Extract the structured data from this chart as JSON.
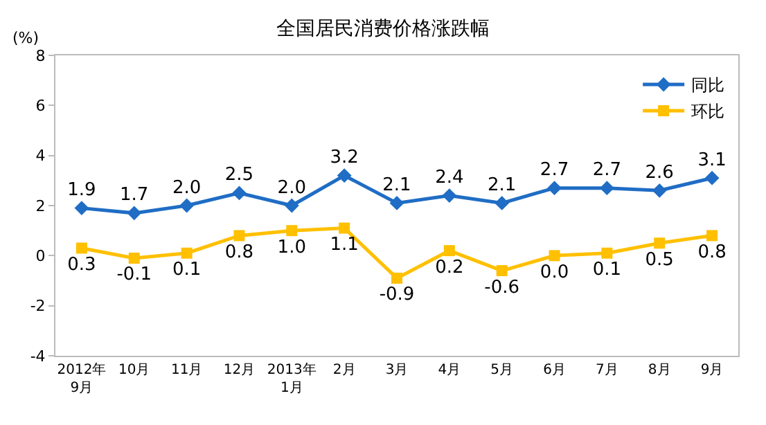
{
  "chart_data": {
    "type": "line",
    "title": "全国居民消费价格涨跌幅",
    "ylabel": "(%)",
    "categories": [
      "2012年\n9月",
      "10月",
      "11月",
      "12月",
      "2013年\n1月",
      "2月",
      "3月",
      "4月",
      "5月",
      "6月",
      "7月",
      "8月",
      "9月"
    ],
    "series": [
      {
        "name": "同比",
        "color": "#1f6dc5",
        "marker": "diamond",
        "values": [
          1.9,
          1.7,
          2.0,
          2.5,
          2.0,
          3.2,
          2.1,
          2.4,
          2.1,
          2.7,
          2.7,
          2.6,
          3.1
        ],
        "value_labels": [
          "1.9",
          "1.7",
          "2.0",
          "2.5",
          "2.0",
          "3.2",
          "2.1",
          "2.4",
          "2.1",
          "2.7",
          "2.7",
          "2.6",
          "3.1"
        ]
      },
      {
        "name": "环比",
        "color": "#ffc000",
        "marker": "square",
        "values": [
          0.3,
          -0.1,
          0.1,
          0.8,
          1.0,
          1.1,
          -0.9,
          0.2,
          -0.6,
          0.0,
          0.1,
          0.5,
          0.8
        ],
        "value_labels": [
          "0.3",
          "-0.1",
          "0.1",
          "0.8",
          "1.0",
          "1.1",
          "-0.9",
          "0.2",
          "-0.6",
          "0.0",
          "0.1",
          "0.5",
          "0.8"
        ]
      }
    ],
    "ylim": [
      -4,
      8
    ],
    "yticks": [
      -4,
      -2,
      0,
      2,
      4,
      6,
      8
    ],
    "grid": false,
    "legend": "top right"
  }
}
